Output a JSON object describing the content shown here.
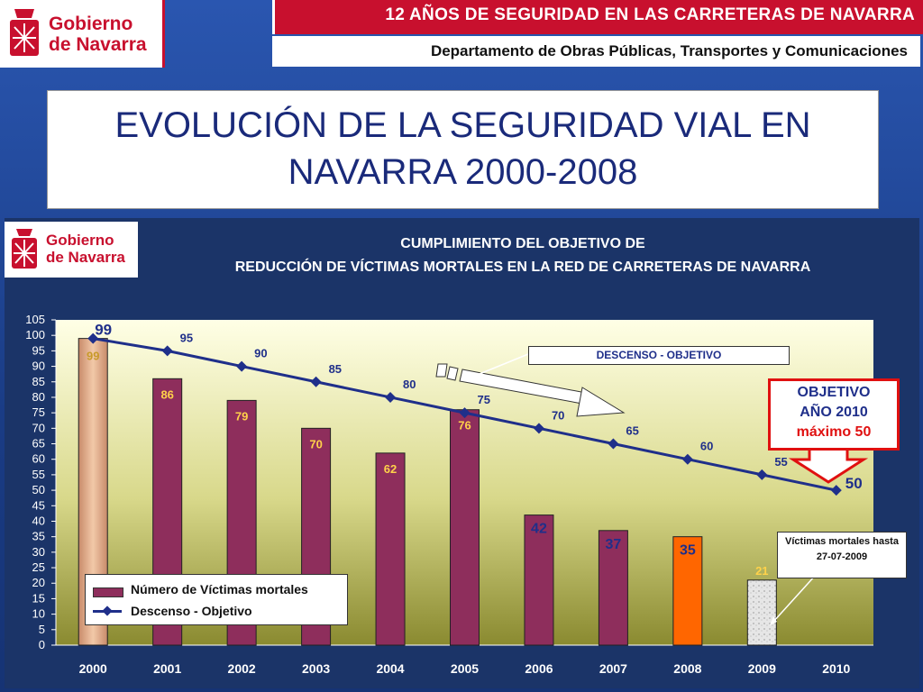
{
  "header": {
    "logo_text_line1": "Gobierno",
    "logo_text_line2": "de Navarra",
    "banner": "12 AÑOS DE SEGURIDAD EN LAS CARRETERAS DE NAVARRA",
    "department": "Departamento de Obras Públicas, Transportes y Comunicaciones"
  },
  "slide_title": {
    "line1": "EVOLUCIÓN DE LA SEGURIDAD VIAL EN",
    "line2": "NAVARRA 2000-2008"
  },
  "chart_logo": {
    "line1": "Gobierno",
    "line2": "de Navarra"
  },
  "annotations": {
    "descenso_label": "DESCENSO - OBJETIVO",
    "objetivo_line1": "OBJETIVO",
    "objetivo_line2": "AÑO 2010",
    "objetivo_line3": "máximo 50",
    "victimas_line1": "Víctimas mortales hasta",
    "victimas_line2": "27-07-2009"
  },
  "colors": {
    "brand_red": "#c8102e",
    "bar_default": "#8e2e5c",
    "bar_2000": "#e8b89a",
    "bar_2008": "#ff6600",
    "bar_2009": "#dcdcdc",
    "line": "#1f2f8a",
    "plot_bg_top": "#ffffe0",
    "plot_bg_bottom": "#8a8a2a"
  },
  "chart_data": {
    "type": "bar",
    "title_line1": "CUMPLIMIENTO DEL OBJETIVO DE",
    "title_line2": "REDUCCIÓN DE VÍCTIMAS MORTALES EN LA RED DE CARRETERAS DE NAVARRA",
    "categories": [
      "2000",
      "2001",
      "2002",
      "2003",
      "2004",
      "2005",
      "2006",
      "2007",
      "2008",
      "2009",
      "2010"
    ],
    "ylim": [
      0,
      105
    ],
    "yticks": [
      0,
      5,
      10,
      15,
      20,
      25,
      30,
      35,
      40,
      45,
      50,
      55,
      60,
      65,
      70,
      75,
      80,
      85,
      90,
      95,
      100,
      105
    ],
    "grid": false,
    "legend_position": "bottom-left",
    "series": [
      {
        "name": "Número de Víctimas mortales",
        "type": "bar",
        "values": [
          99,
          86,
          79,
          70,
          62,
          76,
          42,
          37,
          35,
          21,
          null
        ]
      },
      {
        "name": "Descenso - Objetivo",
        "type": "line",
        "values": [
          99,
          95,
          90,
          85,
          80,
          75,
          70,
          65,
          60,
          55,
          50
        ]
      }
    ]
  }
}
